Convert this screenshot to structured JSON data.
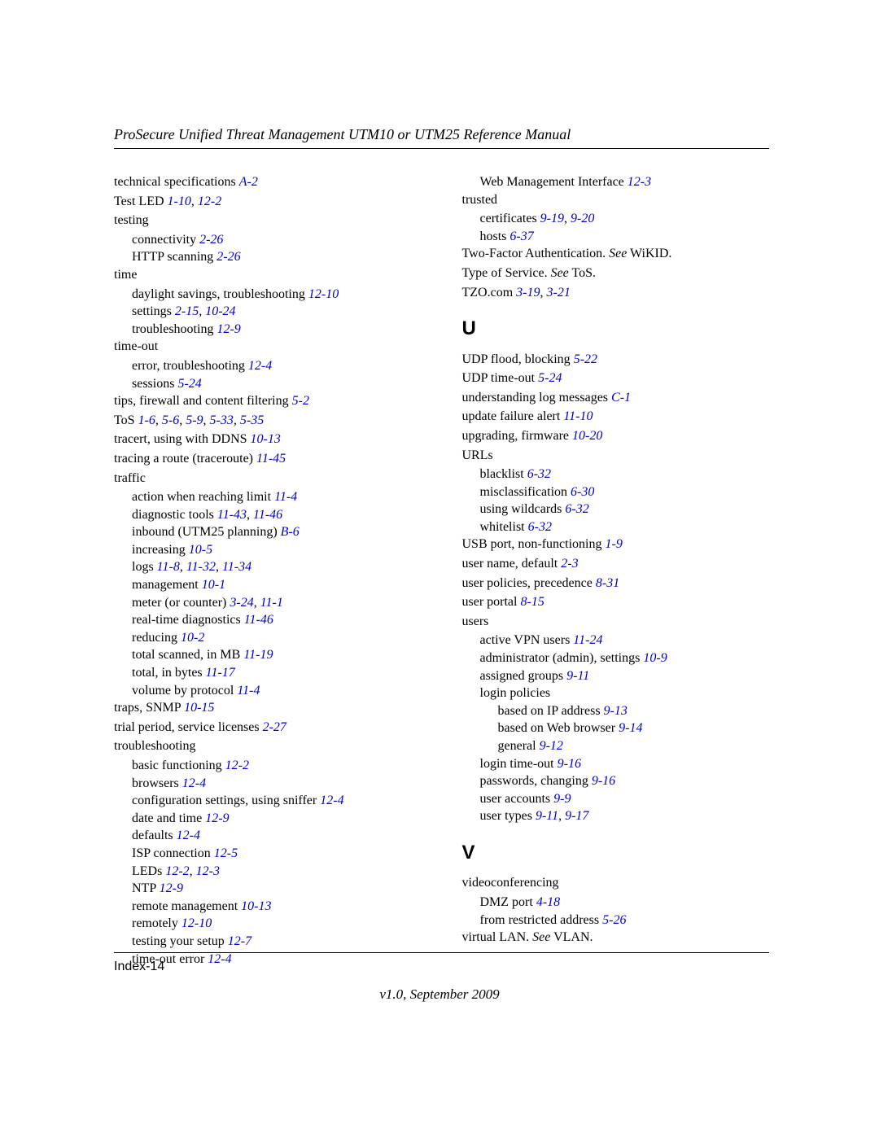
{
  "header": "ProSecure Unified Threat Management UTM10 or UTM25 Reference Manual",
  "footer_page": "Index-14",
  "footer_version": "v1.0, September 2009",
  "colors": {
    "link": "#0000cc",
    "text": "#000000",
    "rule": "#000000"
  },
  "typography": {
    "body_family": "Times New Roman",
    "body_size_pt": 12,
    "letter_family": "Arial",
    "letter_size_pt": 18,
    "letter_weight": "bold"
  },
  "col1": [
    {
      "t": "entry",
      "pre": "technical specifications  ",
      "refs": [
        "A-2"
      ]
    },
    {
      "t": "entry",
      "pre": "Test LED  ",
      "refs": [
        "1-10",
        "12-2"
      ]
    },
    {
      "t": "entry",
      "pre": "testing"
    },
    {
      "t": "sub1",
      "pre": "connectivity  ",
      "refs": [
        "2-26"
      ]
    },
    {
      "t": "sub1",
      "pre": "HTTP scanning  ",
      "refs": [
        "2-26"
      ]
    },
    {
      "t": "entry",
      "pre": "time"
    },
    {
      "t": "sub1",
      "pre": "daylight savings, troubleshooting  ",
      "refs": [
        "12-10"
      ]
    },
    {
      "t": "sub1",
      "pre": "settings  ",
      "refs": [
        "2-15",
        "10-24"
      ]
    },
    {
      "t": "sub1",
      "pre": "troubleshooting  ",
      "refs": [
        "12-9"
      ]
    },
    {
      "t": "entry",
      "pre": "time-out"
    },
    {
      "t": "sub1",
      "pre": "error, troubleshooting  ",
      "refs": [
        "12-4"
      ]
    },
    {
      "t": "sub1",
      "pre": "sessions  ",
      "refs": [
        "5-24"
      ]
    },
    {
      "t": "entry",
      "pre": "tips, firewall and content filtering  ",
      "refs": [
        "5-2"
      ]
    },
    {
      "t": "entry",
      "pre": "ToS  ",
      "refs": [
        "1-6",
        "5-6",
        "5-9",
        "5-33",
        "5-35"
      ]
    },
    {
      "t": "entry",
      "pre": "tracert, using with DDNS  ",
      "refs": [
        "10-13"
      ]
    },
    {
      "t": "entry",
      "pre": "tracing a route (traceroute)  ",
      "refs": [
        "11-45"
      ]
    },
    {
      "t": "entry",
      "pre": "traffic"
    },
    {
      "t": "sub1",
      "pre": "action when reaching limit  ",
      "refs": [
        "11-4"
      ]
    },
    {
      "t": "sub1",
      "pre": "diagnostic tools  ",
      "refs": [
        "11-43",
        "11-46"
      ]
    },
    {
      "t": "sub1",
      "pre": "inbound (UTM25 planning)  ",
      "refs": [
        "B-6"
      ]
    },
    {
      "t": "sub1",
      "pre": "increasing  ",
      "refs": [
        "10-5"
      ]
    },
    {
      "t": "sub1",
      "pre": "logs  ",
      "refs": [
        "11-8",
        "11-32",
        "11-34"
      ]
    },
    {
      "t": "sub1",
      "pre": "management  ",
      "refs": [
        "10-1"
      ]
    },
    {
      "t": "sub1",
      "pre": "meter (or counter)  ",
      "refs": [
        "3-24",
        "11-1"
      ]
    },
    {
      "t": "sub1",
      "pre": "real-time diagnostics  ",
      "refs": [
        "11-46"
      ]
    },
    {
      "t": "sub1",
      "pre": "reducing  ",
      "refs": [
        "10-2"
      ]
    },
    {
      "t": "sub1",
      "pre": "total scanned, in MB  ",
      "refs": [
        "11-19"
      ]
    },
    {
      "t": "sub1",
      "pre": "total, in bytes  ",
      "refs": [
        "11-17"
      ]
    },
    {
      "t": "sub1",
      "pre": "volume by protocol  ",
      "refs": [
        "11-4"
      ]
    },
    {
      "t": "entry",
      "pre": "traps, SNMP  ",
      "refs": [
        "10-15"
      ]
    },
    {
      "t": "entry",
      "pre": "trial period, service licenses  ",
      "refs": [
        "2-27"
      ]
    },
    {
      "t": "entry",
      "pre": "troubleshooting"
    },
    {
      "t": "sub1",
      "pre": "basic functioning  ",
      "refs": [
        "12-2"
      ]
    },
    {
      "t": "sub1",
      "pre": "browsers  ",
      "refs": [
        "12-4"
      ]
    },
    {
      "t": "sub1",
      "pre": "configuration settings, using sniffer  ",
      "refs": [
        "12-4"
      ]
    },
    {
      "t": "sub1",
      "pre": "date and time  ",
      "refs": [
        "12-9"
      ]
    },
    {
      "t": "sub1",
      "pre": "defaults  ",
      "refs": [
        "12-4"
      ]
    },
    {
      "t": "sub1",
      "pre": "ISP connection  ",
      "refs": [
        "12-5"
      ]
    },
    {
      "t": "sub1",
      "pre": "LEDs  ",
      "refs": [
        "12-2",
        "12-3"
      ]
    },
    {
      "t": "sub1",
      "pre": "NTP  ",
      "refs": [
        "12-9"
      ]
    },
    {
      "t": "sub1",
      "pre": "remote management  ",
      "refs": [
        "10-13"
      ]
    },
    {
      "t": "sub1",
      "pre": "remotely  ",
      "refs": [
        "12-10"
      ]
    },
    {
      "t": "sub1",
      "pre": "testing your setup  ",
      "refs": [
        "12-7"
      ]
    },
    {
      "t": "sub1",
      "pre": "time-out error  ",
      "refs": [
        "12-4"
      ]
    }
  ],
  "col2": [
    {
      "t": "sub1",
      "pre": "Web Management Interface  ",
      "refs": [
        "12-3"
      ]
    },
    {
      "t": "entry",
      "pre": "trusted"
    },
    {
      "t": "sub1",
      "pre": "certificates  ",
      "refs": [
        "9-19",
        "9-20"
      ]
    },
    {
      "t": "sub1",
      "pre": "hosts  ",
      "refs": [
        "6-37"
      ]
    },
    {
      "t": "entry",
      "pre": "Two-Factor Authentication. ",
      "see": "See",
      "post": " WiKID."
    },
    {
      "t": "entry",
      "pre": "Type of Service. ",
      "see": "See",
      "post": " ToS."
    },
    {
      "t": "entry",
      "pre": "TZO.com  ",
      "refs": [
        "3-19",
        "3-21"
      ]
    },
    {
      "t": "letter",
      "text": "U"
    },
    {
      "t": "entry",
      "pre": "UDP flood, blocking  ",
      "refs": [
        "5-22"
      ]
    },
    {
      "t": "entry",
      "pre": "UDP time-out  ",
      "refs": [
        "5-24"
      ]
    },
    {
      "t": "entry",
      "pre": "understanding log messages  ",
      "refs": [
        "C-1"
      ]
    },
    {
      "t": "entry",
      "pre": "update failure alert  ",
      "refs": [
        "11-10"
      ]
    },
    {
      "t": "entry",
      "pre": "upgrading, firmware  ",
      "refs": [
        "10-20"
      ]
    },
    {
      "t": "entry",
      "pre": "URLs"
    },
    {
      "t": "sub1",
      "pre": "blacklist  ",
      "refs": [
        "6-32"
      ]
    },
    {
      "t": "sub1",
      "pre": "misclassification  ",
      "refs": [
        "6-30"
      ]
    },
    {
      "t": "sub1",
      "pre": "using wildcards  ",
      "refs": [
        "6-32"
      ]
    },
    {
      "t": "sub1",
      "pre": "whitelist  ",
      "refs": [
        "6-32"
      ]
    },
    {
      "t": "entry",
      "pre": "USB port, non-functioning  ",
      "refs": [
        "1-9"
      ]
    },
    {
      "t": "entry",
      "pre": "user name, default  ",
      "refs": [
        "2-3"
      ]
    },
    {
      "t": "entry",
      "pre": "user policies, precedence  ",
      "refs": [
        "8-31"
      ]
    },
    {
      "t": "entry",
      "pre": "user portal  ",
      "refs": [
        "8-15"
      ]
    },
    {
      "t": "entry",
      "pre": "users"
    },
    {
      "t": "sub1",
      "pre": "active VPN users  ",
      "refs": [
        "11-24"
      ]
    },
    {
      "t": "sub1",
      "pre": "administrator (admin), settings  ",
      "refs": [
        "10-9"
      ]
    },
    {
      "t": "sub1",
      "pre": "assigned groups  ",
      "refs": [
        "9-11"
      ]
    },
    {
      "t": "sub1",
      "pre": "login policies"
    },
    {
      "t": "sub2",
      "pre": "based on IP address  ",
      "refs": [
        "9-13"
      ]
    },
    {
      "t": "sub2",
      "pre": "based on Web browser  ",
      "refs": [
        "9-14"
      ]
    },
    {
      "t": "sub2",
      "pre": "general  ",
      "refs": [
        "9-12"
      ]
    },
    {
      "t": "sub1",
      "pre": "login time-out  ",
      "refs": [
        "9-16"
      ]
    },
    {
      "t": "sub1",
      "pre": "passwords, changing  ",
      "refs": [
        "9-16"
      ]
    },
    {
      "t": "sub1",
      "pre": "user accounts  ",
      "refs": [
        "9-9"
      ]
    },
    {
      "t": "sub1",
      "pre": "user types  ",
      "refs": [
        "9-11",
        "9-17"
      ]
    },
    {
      "t": "letter",
      "text": "V"
    },
    {
      "t": "entry",
      "pre": "videoconferencing"
    },
    {
      "t": "sub1",
      "pre": "DMZ port  ",
      "refs": [
        "4-18"
      ]
    },
    {
      "t": "sub1",
      "pre": "from restricted address  ",
      "refs": [
        "5-26"
      ]
    },
    {
      "t": "entry",
      "pre": "virtual LAN. ",
      "see": "See",
      "post": " VLAN."
    }
  ]
}
